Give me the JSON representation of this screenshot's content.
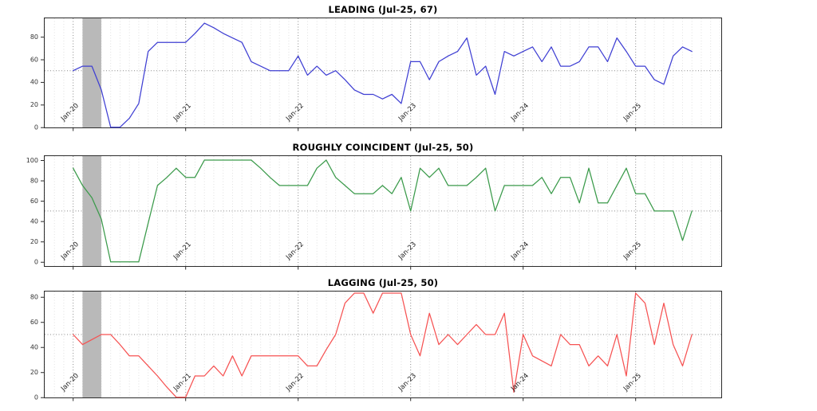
{
  "figure": {
    "background_color": "#ffffff",
    "panel_count": 3
  },
  "chart_data": [
    {
      "type": "line",
      "title": "LEADING (Jul-25, 67)",
      "color": "#3f3fd3",
      "latest_label": "Jul-25",
      "latest_value": 67,
      "yticks": [
        0,
        20,
        40,
        60,
        80
      ],
      "ylim": [
        -0.9,
        97
      ],
      "reference_line_y": 50,
      "grid": "dotted vertical monthly, dark dotted at each January, dotted horizontal at 50",
      "recession_band": {
        "start_month": "Feb-20",
        "end_month": "Apr-20",
        "color": "#b9b9b9"
      },
      "x_tick_labels": [
        {
          "index": 0,
          "label": "Jan-20"
        },
        {
          "index": 12,
          "label": "Jan-21"
        },
        {
          "index": 24,
          "label": "Jan-22"
        },
        {
          "index": 36,
          "label": "Jan-23"
        },
        {
          "index": 48,
          "label": "Jan-24"
        },
        {
          "index": 60,
          "label": "Jan-25"
        }
      ],
      "x": [
        "Jan-20",
        "Feb-20",
        "Mar-20",
        "Apr-20",
        "May-20",
        "Jun-20",
        "Jul-20",
        "Aug-20",
        "Sep-20",
        "Oct-20",
        "Nov-20",
        "Dec-20",
        "Jan-21",
        "Feb-21",
        "Mar-21",
        "Apr-21",
        "May-21",
        "Jun-21",
        "Jul-21",
        "Aug-21",
        "Sep-21",
        "Oct-21",
        "Nov-21",
        "Dec-21",
        "Jan-22",
        "Feb-22",
        "Mar-22",
        "Apr-22",
        "May-22",
        "Jun-22",
        "Jul-22",
        "Aug-22",
        "Sep-22",
        "Oct-22",
        "Nov-22",
        "Dec-22",
        "Jan-23",
        "Feb-23",
        "Mar-23",
        "Apr-23",
        "May-23",
        "Jun-23",
        "Jul-23",
        "Aug-23",
        "Sep-23",
        "Oct-23",
        "Nov-23",
        "Dec-23",
        "Jan-24",
        "Feb-24",
        "Mar-24",
        "Apr-24",
        "May-24",
        "Jun-24",
        "Jul-24",
        "Aug-24",
        "Sep-24",
        "Oct-24",
        "Nov-24",
        "Dec-24",
        "Jan-25",
        "Feb-25",
        "Mar-25",
        "Apr-25",
        "May-25",
        "Jun-25",
        "Jul-25"
      ],
      "values": [
        50,
        54,
        54,
        33,
        0,
        0,
        8,
        21,
        67,
        75,
        75,
        75,
        75,
        83,
        92,
        88,
        83,
        79,
        75,
        58,
        54,
        50,
        50,
        50,
        63,
        46,
        54,
        46,
        50,
        42,
        33,
        29,
        29,
        25,
        29,
        21,
        58,
        58,
        42,
        58,
        63,
        67,
        79,
        46,
        54,
        29,
        67,
        63,
        67,
        71,
        58,
        71,
        54,
        54,
        58,
        71,
        71,
        58,
        79,
        67,
        54,
        54,
        42,
        38,
        63,
        71,
        67
      ]
    },
    {
      "type": "line",
      "title": "ROUGHLY COINCIDENT (Jul-25, 50)",
      "color": "#3a9a4a",
      "latest_label": "Jul-25",
      "latest_value": 50,
      "yticks": [
        0,
        20,
        40,
        60,
        80,
        100
      ],
      "ylim": [
        -4.9,
        104.7
      ],
      "reference_line_y": 50,
      "grid": "dotted vertical monthly, dark dotted at each January, dotted horizontal at 50",
      "recession_band": {
        "start_month": "Feb-20",
        "end_month": "Apr-20",
        "color": "#b9b9b9"
      },
      "x_tick_labels": [
        {
          "index": 0,
          "label": "Jan-20"
        },
        {
          "index": 12,
          "label": "Jan-21"
        },
        {
          "index": 24,
          "label": "Jan-22"
        },
        {
          "index": 36,
          "label": "Jan-23"
        },
        {
          "index": 48,
          "label": "Jan-24"
        },
        {
          "index": 60,
          "label": "Jan-25"
        }
      ],
      "x": [
        "Jan-20",
        "Feb-20",
        "Mar-20",
        "Apr-20",
        "May-20",
        "Jun-20",
        "Jul-20",
        "Aug-20",
        "Sep-20",
        "Oct-20",
        "Nov-20",
        "Dec-20",
        "Jan-21",
        "Feb-21",
        "Mar-21",
        "Apr-21",
        "May-21",
        "Jun-21",
        "Jul-21",
        "Aug-21",
        "Sep-21",
        "Oct-21",
        "Nov-21",
        "Dec-21",
        "Jan-22",
        "Feb-22",
        "Mar-22",
        "Apr-22",
        "May-22",
        "Jun-22",
        "Jul-22",
        "Aug-22",
        "Sep-22",
        "Oct-22",
        "Nov-22",
        "Dec-22",
        "Jan-23",
        "Feb-23",
        "Mar-23",
        "Apr-23",
        "May-23",
        "Jun-23",
        "Jul-23",
        "Aug-23",
        "Sep-23",
        "Oct-23",
        "Nov-23",
        "Dec-23",
        "Jan-24",
        "Feb-24",
        "Mar-24",
        "Apr-24",
        "May-24",
        "Jun-24",
        "Jul-24",
        "Aug-24",
        "Sep-24",
        "Oct-24",
        "Nov-24",
        "Dec-24",
        "Jan-25",
        "Feb-25",
        "Mar-25",
        "Apr-25",
        "May-25",
        "Jun-25",
        "Jul-25"
      ],
      "values": [
        92,
        75,
        63,
        42,
        0,
        0,
        0,
        0,
        38,
        75,
        83,
        92,
        83,
        83,
        100,
        100,
        100,
        100,
        100,
        100,
        92,
        83,
        75,
        75,
        75,
        75,
        92,
        100,
        83,
        75,
        67,
        67,
        67,
        75,
        67,
        83,
        50,
        92,
        83,
        92,
        75,
        75,
        75,
        83,
        92,
        50,
        75,
        75,
        75,
        75,
        83,
        67,
        83,
        83,
        58,
        92,
        58,
        58,
        75,
        92,
        67,
        67,
        50,
        50,
        50,
        21,
        50
      ]
    },
    {
      "type": "line",
      "title": "LAGGING (Jul-25, 50)",
      "color": "#f65252",
      "latest_label": "Jul-25",
      "latest_value": 50,
      "yticks": [
        0,
        20,
        40,
        60,
        80
      ],
      "ylim": [
        -0.8,
        84.9
      ],
      "reference_line_y": 50,
      "grid": "dotted vertical monthly, dark dotted at each January, dotted horizontal at 50",
      "recession_band": {
        "start_month": "Feb-20",
        "end_month": "Apr-20",
        "color": "#b9b9b9"
      },
      "x_tick_labels": [
        {
          "index": 0,
          "label": "Jan-20"
        },
        {
          "index": 12,
          "label": "Jan-21"
        },
        {
          "index": 24,
          "label": "Jan-22"
        },
        {
          "index": 36,
          "label": "Jan-23"
        },
        {
          "index": 48,
          "label": "Jan-24"
        },
        {
          "index": 60,
          "label": "Jan-25"
        }
      ],
      "x": [
        "Jan-20",
        "Feb-20",
        "Mar-20",
        "Apr-20",
        "May-20",
        "Jun-20",
        "Jul-20",
        "Aug-20",
        "Sep-20",
        "Oct-20",
        "Nov-20",
        "Dec-20",
        "Jan-21",
        "Feb-21",
        "Mar-21",
        "Apr-21",
        "May-21",
        "Jun-21",
        "Jul-21",
        "Aug-21",
        "Sep-21",
        "Oct-21",
        "Nov-21",
        "Dec-21",
        "Jan-22",
        "Feb-22",
        "Mar-22",
        "Apr-22",
        "May-22",
        "Jun-22",
        "Jul-22",
        "Aug-22",
        "Sep-22",
        "Oct-22",
        "Nov-22",
        "Dec-22",
        "Jan-23",
        "Feb-23",
        "Mar-23",
        "Apr-23",
        "May-23",
        "Jun-23",
        "Jul-23",
        "Aug-23",
        "Sep-23",
        "Oct-23",
        "Nov-23",
        "Dec-23",
        "Jan-24",
        "Feb-24",
        "Mar-24",
        "Apr-24",
        "May-24",
        "Jun-24",
        "Jul-24",
        "Aug-24",
        "Sep-24",
        "Oct-24",
        "Nov-24",
        "Dec-24",
        "Jan-25",
        "Feb-25",
        "Mar-25",
        "Apr-25",
        "May-25",
        "Jun-25",
        "Jul-25"
      ],
      "values": [
        50,
        42,
        46,
        50,
        50,
        42,
        33,
        33,
        25,
        17,
        8,
        0,
        0,
        17,
        17,
        25,
        17,
        33,
        17,
        33,
        33,
        33,
        33,
        33,
        33,
        25,
        25,
        38,
        50,
        75,
        83,
        83,
        67,
        83,
        83,
        83,
        50,
        33,
        67,
        42,
        50,
        42,
        50,
        58,
        50,
        50,
        67,
        4,
        50,
        33,
        29,
        25,
        50,
        42,
        42,
        25,
        33,
        25,
        50,
        17,
        83,
        75,
        42,
        75,
        42,
        25,
        50
      ]
    }
  ]
}
